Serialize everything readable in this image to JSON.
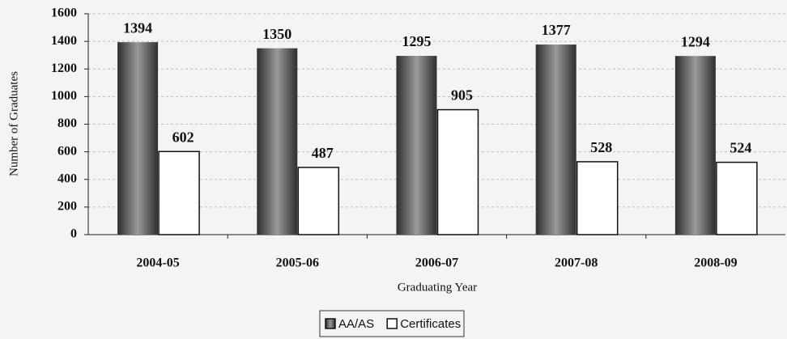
{
  "chart_data": {
    "type": "bar",
    "x_label": "Graduating Year",
    "y_label": "Number of Graduates",
    "categories": [
      "2004-05",
      "2005-06",
      "2006-07",
      "2007-08",
      "2008-09"
    ],
    "series": [
      {
        "name": "AA/AS",
        "color": "#5a5a5a",
        "values": [
          1394,
          1350,
          1295,
          1377,
          1294
        ]
      },
      {
        "name": "Certificates",
        "color": "#ffffff",
        "values": [
          602,
          487,
          905,
          528,
          524
        ]
      }
    ],
    "ylim": [
      0,
      1600
    ],
    "yticks": [
      0,
      200,
      400,
      600,
      800,
      1000,
      1200,
      1400,
      1600
    ],
    "grid": true,
    "legend": "bottom"
  }
}
